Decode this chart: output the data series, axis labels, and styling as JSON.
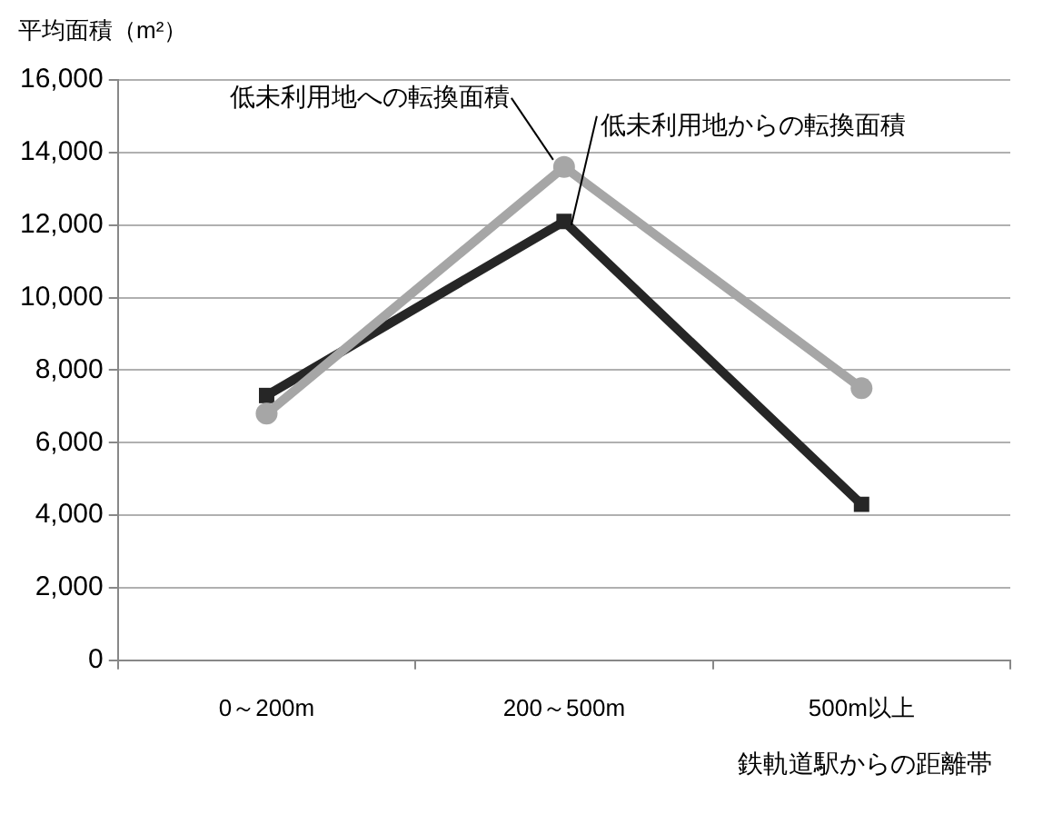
{
  "chart_data": {
    "type": "line",
    "ylabel": "平均面積（m²）",
    "xlabel": "鉄軌道駅からの距離帯",
    "categories": [
      "0～200m",
      "200～500m",
      "500m以上"
    ],
    "series": [
      {
        "name": "低未利用地への転換面積",
        "color": "#a6a6a6",
        "marker": "circle",
        "values": [
          6800,
          13600,
          7500
        ]
      },
      {
        "name": "低未利用地からの転換面積",
        "color": "#262626",
        "marker": "square",
        "values": [
          7300,
          12100,
          4300
        ]
      }
    ],
    "ylim": [
      0,
      16000
    ],
    "yticks": [
      0,
      {
        "value": 2000,
        "label": "2,000"
      },
      {
        "value": 4000,
        "label": "4,000"
      },
      {
        "value": 6000,
        "label": "6,000"
      },
      {
        "value": 8000,
        "label": "8,000"
      },
      {
        "value": 10000,
        "label": "10,000"
      },
      {
        "value": 12000,
        "label": "12,000"
      },
      {
        "value": 14000,
        "label": "14,000"
      },
      {
        "value": 16000,
        "label": "16,000"
      }
    ],
    "grid": "y",
    "legend": false
  }
}
